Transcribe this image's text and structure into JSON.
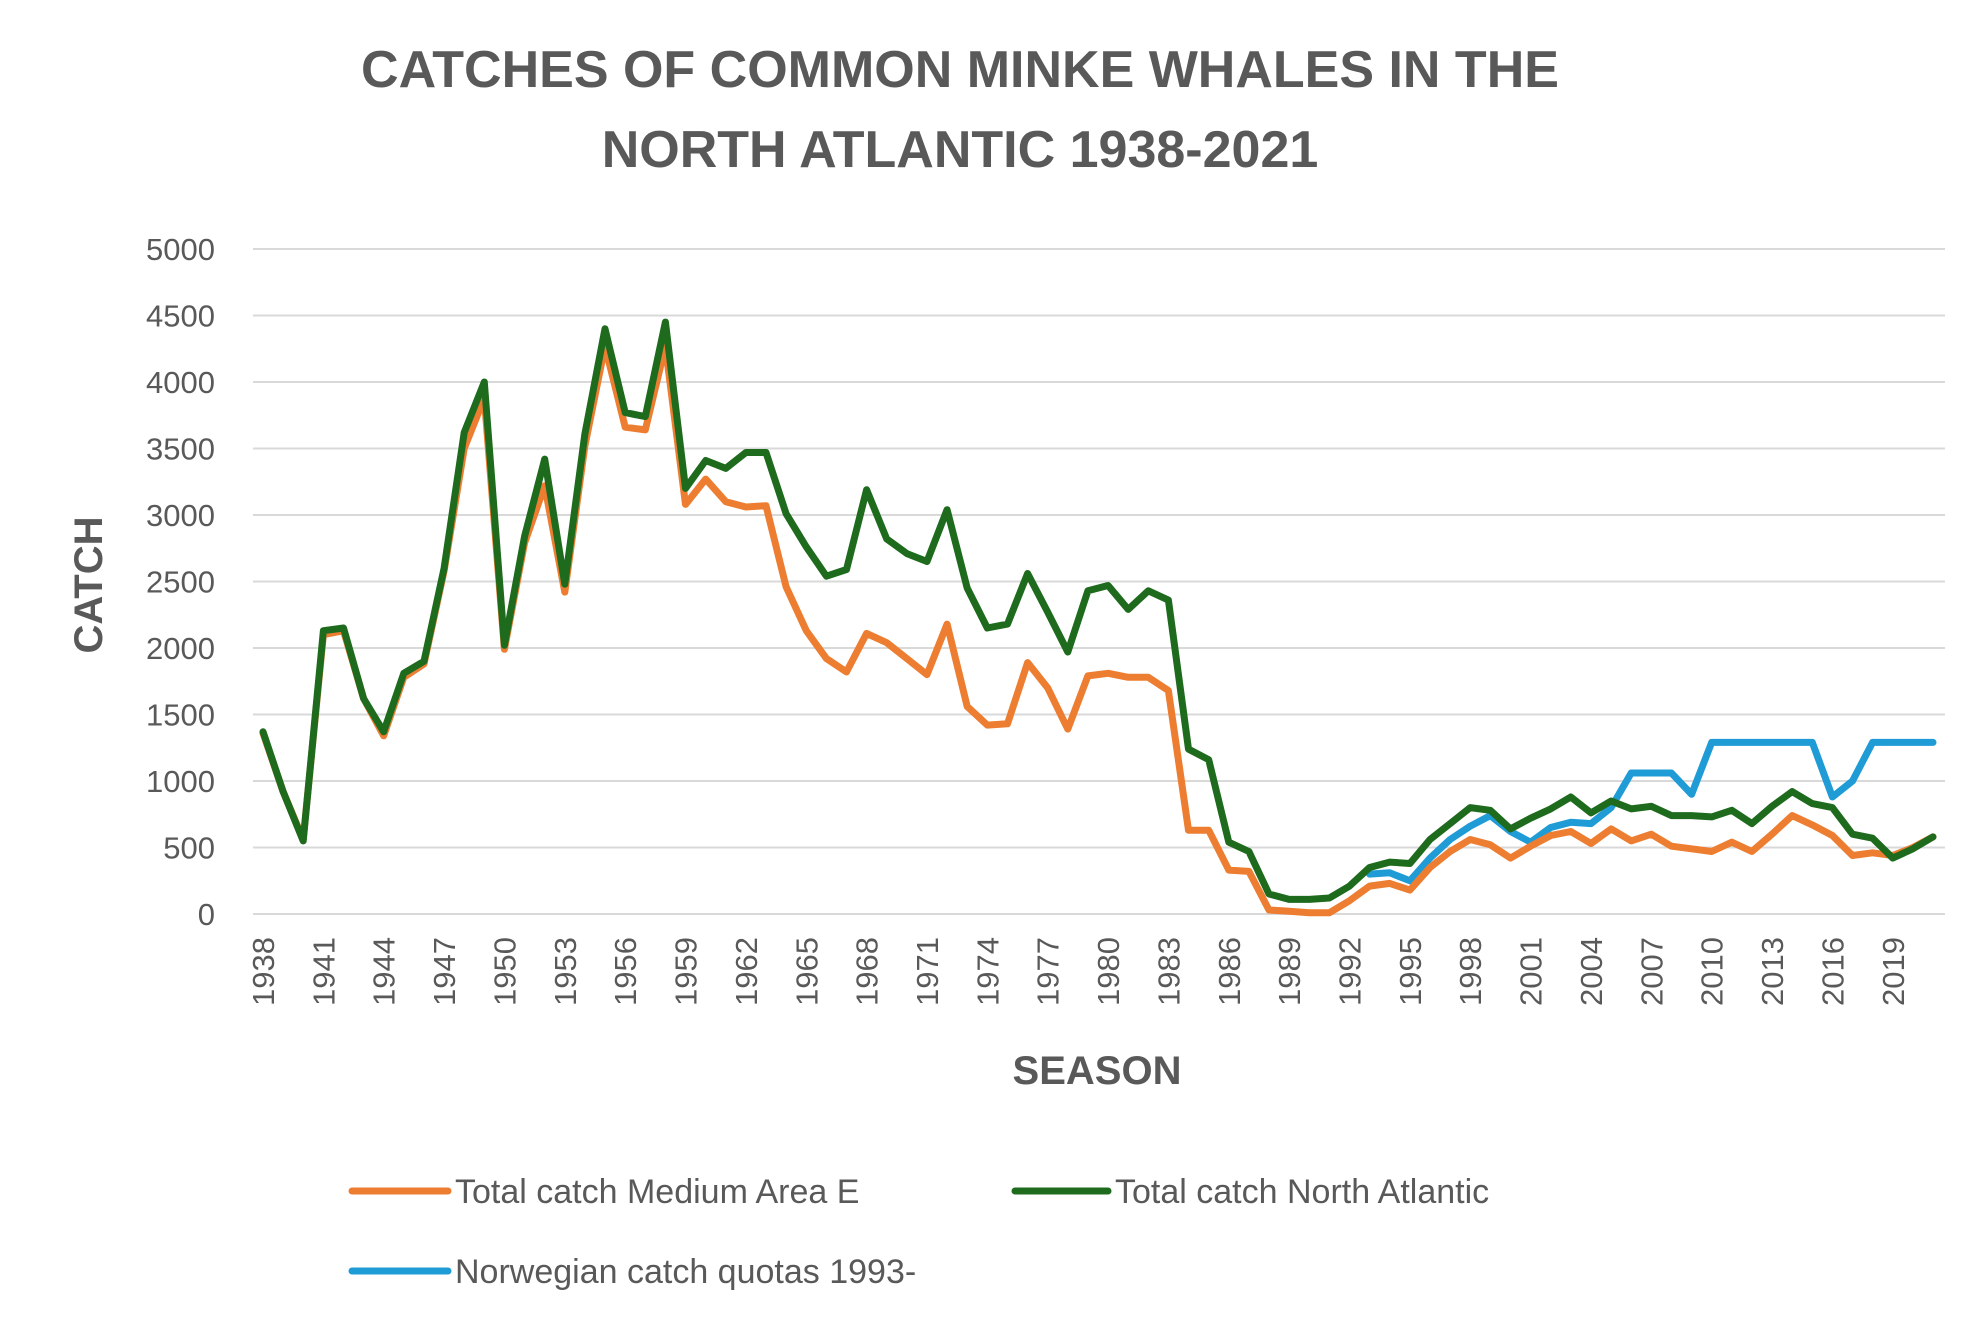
{
  "chart_data": {
    "type": "line",
    "title_lines": [
      "CATCHES OF COMMON MINKE WHALES IN THE",
      "NORTH ATLANTIC 1938-2021"
    ],
    "xlabel": "SEASON",
    "ylabel": "CATCH",
    "ylim": [
      0,
      5000
    ],
    "yticks": [
      0,
      500,
      1000,
      1500,
      2000,
      2500,
      3000,
      3500,
      4000,
      4500,
      5000
    ],
    "x_start": 1938,
    "x_end": 2021,
    "xtick_labels": [
      "1938",
      "1941",
      "1944",
      "1947",
      "1950",
      "1953",
      "1956",
      "1959",
      "1962",
      "1965",
      "1968",
      "1971",
      "1974",
      "1977",
      "1980",
      "1983",
      "1986",
      "1989",
      "1992",
      "1995",
      "1998",
      "2001",
      "2004",
      "2007",
      "2010",
      "2013",
      "2016",
      "2019"
    ],
    "grid": true,
    "legend_position": "bottom",
    "series": [
      {
        "name": "Total catch Medium Area E",
        "color": "#ed7d31",
        "start_year": 1938,
        "values": [
          1360,
          920,
          560,
          2100,
          2130,
          1620,
          1340,
          1780,
          1880,
          2580,
          3500,
          3880,
          1990,
          2790,
          3220,
          2420,
          3520,
          4270,
          3660,
          3640,
          4270,
          3080,
          3270,
          3100,
          3060,
          3070,
          2460,
          2130,
          1920,
          1820,
          2110,
          2040,
          1920,
          1800,
          2180,
          1560,
          1420,
          1430,
          1890,
          1700,
          1390,
          1790,
          1810,
          1780,
          1780,
          1680,
          630,
          630,
          330,
          320,
          30,
          20,
          10,
          10,
          100,
          210,
          230,
          180,
          350,
          470,
          560,
          520,
          420,
          510,
          590,
          620,
          530,
          640,
          550,
          600,
          510,
          490,
          470,
          540,
          470,
          600,
          740,
          670,
          590,
          440,
          460,
          440,
          500,
          580
        ]
      },
      {
        "name": "Total catch North Atlantic",
        "color": "#1e6b1e",
        "start_year": 1938,
        "values": [
          1370,
          920,
          550,
          2130,
          2150,
          1620,
          1370,
          1810,
          1900,
          2600,
          3620,
          4000,
          2020,
          2840,
          3420,
          2480,
          3610,
          4400,
          3770,
          3740,
          4450,
          3200,
          3410,
          3350,
          3470,
          3470,
          3010,
          2760,
          2540,
          2590,
          3190,
          2820,
          2710,
          2650,
          3040,
          2450,
          2150,
          2180,
          2560,
          2270,
          1970,
          2430,
          2470,
          2290,
          2430,
          2360,
          1240,
          1160,
          540,
          470,
          150,
          110,
          110,
          120,
          210,
          350,
          390,
          380,
          560,
          680,
          800,
          780,
          640,
          720,
          790,
          880,
          760,
          850,
          790,
          810,
          740,
          740,
          730,
          780,
          680,
          810,
          920,
          830,
          800,
          600,
          570,
          420,
          490,
          580
        ]
      },
      {
        "name": "Norwegian catch quotas 1993-",
        "color": "#1f9bd6",
        "start_year": 1993,
        "values": [
          300,
          310,
          250,
          420,
          560,
          660,
          740,
          620,
          540,
          650,
          690,
          680,
          800,
          1060,
          1060,
          1060,
          900,
          1290,
          1290,
          1290,
          1290,
          1290,
          1290,
          880,
          1000,
          1290,
          1290,
          1290,
          1290
        ]
      }
    ]
  }
}
